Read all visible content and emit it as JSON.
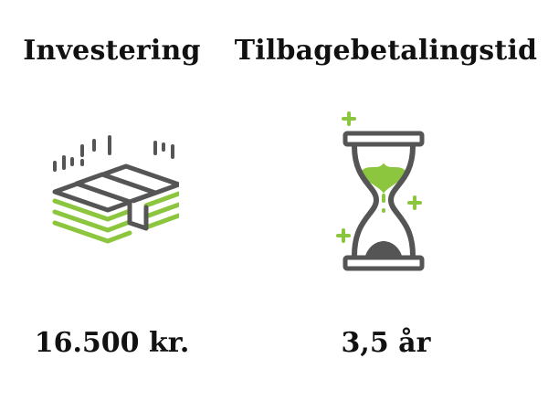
{
  "investment": {
    "label": "Investering",
    "value": "16.500 kr.",
    "icon": "money-stack-icon"
  },
  "payback": {
    "label": "Tilbagebetalingstid",
    "value": "3,5 år",
    "icon": "hourglass-icon"
  },
  "colors": {
    "dark": "#555555",
    "accent": "#8cc63f",
    "text": "#111111"
  }
}
